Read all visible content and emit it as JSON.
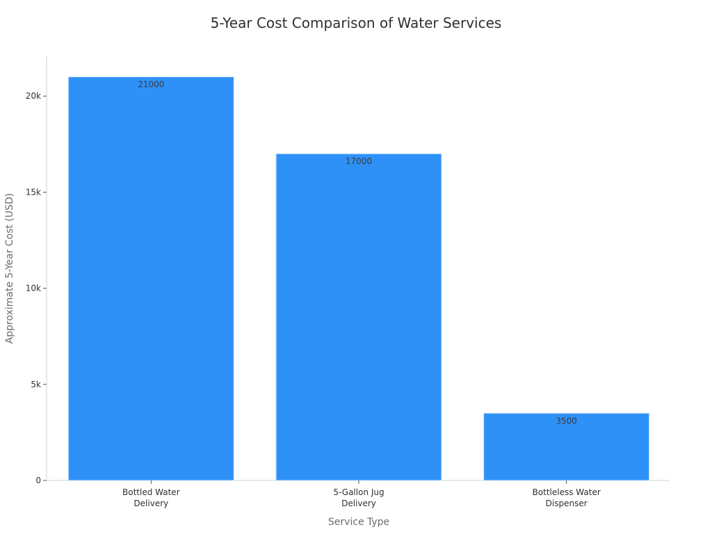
{
  "chart_data": {
    "type": "bar",
    "title": "5-Year Cost Comparison of Water Services",
    "xlabel": "Service Type",
    "ylabel": "Approximate 5-Year Cost (USD)",
    "categories": [
      [
        "Bottled Water",
        "Delivery"
      ],
      [
        "5-Gallon Jug",
        "Delivery"
      ],
      [
        "Bottleless Water",
        "Dispenser"
      ]
    ],
    "values": [
      21000,
      17000,
      3500
    ],
    "data_labels": [
      "21000",
      "17000",
      "3500"
    ],
    "ylim": [
      0,
      22000
    ],
    "yticks": [
      0,
      5000,
      10000,
      15000,
      20000
    ],
    "ytick_labels": [
      "0",
      "5k",
      "10k",
      "15k",
      "20k"
    ],
    "grid": false,
    "legend": "none",
    "colors": {
      "bar": "#2e91f8",
      "bar_edge": "#cfe3fb"
    }
  }
}
